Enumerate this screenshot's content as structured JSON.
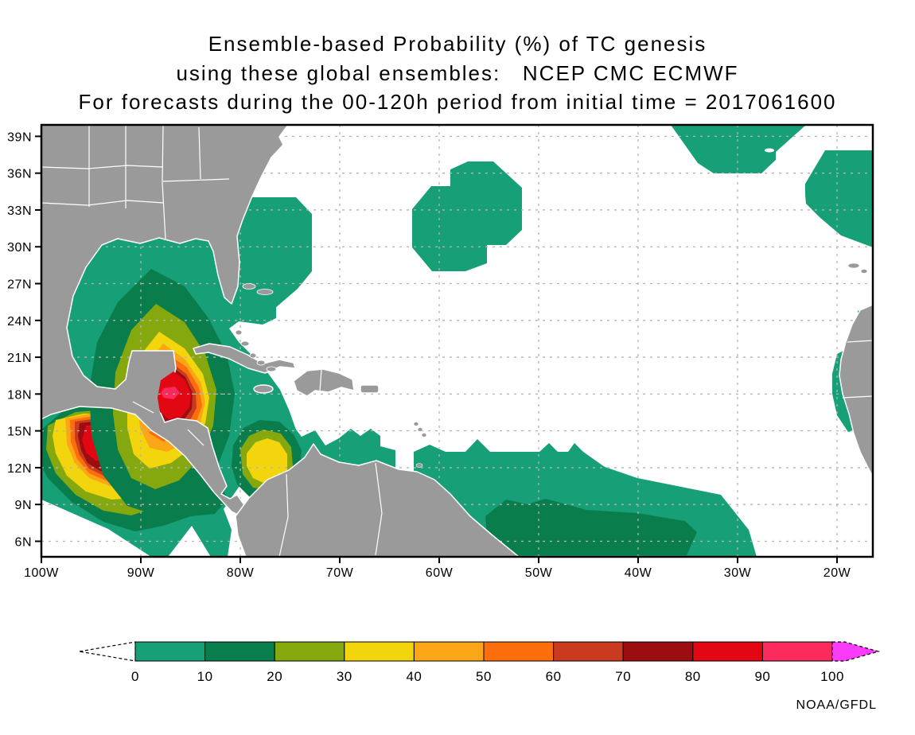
{
  "title": {
    "line1": "Ensemble-based Probability (%) of TC genesis",
    "line2": "using these global ensembles:   NCEP CMC ECMWF",
    "line3": "For forecasts during the 00-120h period from initial time = 2017061600"
  },
  "credit": "NOAA/GFDL",
  "colors": {
    "land": "#9A9A9A",
    "coastline": "#FFFFFF",
    "ocean": "#FFFFFF",
    "grid": "#B4B4B4",
    "frame": "#000000",
    "credit_text": "#E5E54B"
  },
  "axes": {
    "lat_ticks": [
      "39N",
      "36N",
      "33N",
      "30N",
      "27N",
      "24N",
      "21N",
      "18N",
      "15N",
      "12N",
      "9N",
      "6N"
    ],
    "lon_ticks": [
      "100W",
      "90W",
      "80W",
      "70W",
      "60W",
      "50W",
      "40W",
      "30W",
      "20W"
    ]
  },
  "colorbar": {
    "tick_labels": [
      "0",
      "10",
      "20",
      "30",
      "40",
      "50",
      "60",
      "70",
      "80",
      "90",
      "100"
    ],
    "segment_colors": [
      "#17A077",
      "#0A7D4C",
      "#84A80E",
      "#F2D50C",
      "#FBA616",
      "#FB6E0B",
      "#C93A1F",
      "#9C0D12",
      "#E30613",
      "#FA2A5C",
      "#FB3BFA"
    ],
    "underflow_color": "#FFFFFF",
    "overflow_color": "#FB3BFA"
  },
  "chart_data": {
    "type": "contour_map",
    "variable": "Ensemble-based Probability (%) of TC genesis",
    "ensembles": [
      "NCEP",
      "CMC",
      "ECMWF"
    ],
    "forecast_period": "00-120h",
    "initial_time": "2017061600",
    "lon_range": "100W to ~16W",
    "lat_range": "~4.5N to 40N",
    "grid": "dotted graticule every 10 deg lon / 3 deg lat",
    "legend_position": "bottom horizontal colorbar with under/overflow arrows",
    "contour_levels_percent": [
      0,
      10,
      20,
      30,
      40,
      50,
      60,
      70,
      80,
      90,
      100
    ],
    "maxima": [
      {
        "location": "NW Caribbean / Gulf of Honduras near Belize (~87W, 18N)",
        "value_percent": "90-100"
      },
      {
        "location": "Eastern Pacific south of Gulf of Tehuantepec (~94W, 14N)",
        "value_percent": "80-90"
      },
      {
        "location": "SW Caribbean west of Colombia (~77W, 12.5N)",
        "value_percent": "30-40"
      },
      {
        "location": "Tropical Atlantic (~45W-35W, 6N-9N)",
        "value_percent": "10-20"
      }
    ],
    "low_probability_areas_0_10_percent": [
      "Gulf of Mexico and western Caribbean broad area",
      "NW Bahamas / east of Florida (~78W-73W, 25N-34N)",
      "Central subtropical Atlantic (~63W-52W, 28N-37N)",
      "NE Atlantic at top edge (~37W-27W, 37N-40N)",
      "Far eastern Atlantic (~22W-16W, 28N-36N)",
      "Tropical Atlantic band (~57W-31W, 5N-13N)",
      "Near West African coast (~19W-16W, 15N-21N)"
    ]
  }
}
